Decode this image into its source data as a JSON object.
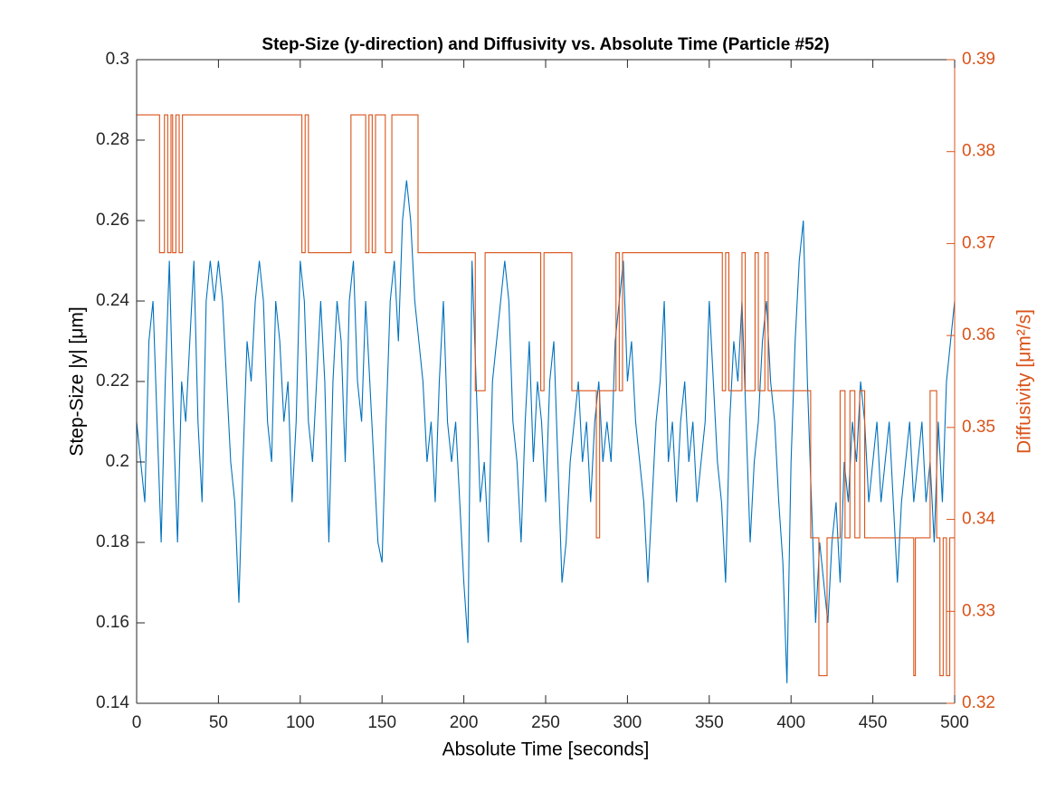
{
  "chart_data": {
    "type": "line",
    "title": "Step-Size (y-direction) and Diffusivity vs. Absolute Time (Particle #52)",
    "xlabel": "Absolute Time [seconds]",
    "ylabel": "Step-Size |y| [μm]",
    "y2label": "Diffusivity [μm²/s]",
    "xlim": [
      0,
      500
    ],
    "xticks": [
      0,
      50,
      100,
      150,
      200,
      250,
      300,
      350,
      400,
      450,
      500
    ],
    "ylim": [
      0.14,
      0.3
    ],
    "yticks": [
      0.14,
      0.16,
      0.18,
      0.2,
      0.22,
      0.24,
      0.26,
      0.28,
      0.3
    ],
    "y2lim": [
      0.32,
      0.39
    ],
    "y2ticks": [
      0.32,
      0.33,
      0.34,
      0.35,
      0.36,
      0.37,
      0.38,
      0.39
    ],
    "y2color": "#D95319",
    "series": [
      {
        "color": "#0072BD",
        "axis": "y",
        "x": [
          0,
          2.5,
          5,
          7.5,
          10,
          12.5,
          15,
          17.5,
          20,
          22.5,
          25,
          27.5,
          30,
          32.5,
          35,
          37.5,
          40,
          42.5,
          45,
          47.5,
          50,
          52.5,
          55,
          57.5,
          60,
          62.5,
          65,
          67.5,
          70,
          72.5,
          75,
          77.5,
          80,
          82.5,
          85,
          87.5,
          90,
          92.5,
          95,
          97.5,
          100,
          102.5,
          105,
          107.5,
          110,
          112.5,
          115,
          117.5,
          120,
          122.5,
          125,
          127.5,
          130,
          132.5,
          135,
          137.5,
          140,
          142.5,
          145,
          147.5,
          150,
          152.5,
          155,
          157.5,
          160,
          162.5,
          165,
          167.5,
          170,
          172.5,
          175,
          177.5,
          180,
          182.5,
          185,
          187.5,
          190,
          192.5,
          195,
          197.5,
          200,
          202.5,
          205,
          207.5,
          210,
          212.5,
          215,
          217.5,
          220,
          222.5,
          225,
          227.5,
          230,
          232.5,
          235,
          237.5,
          240,
          242.5,
          245,
          247.5,
          250,
          252.5,
          255,
          257.5,
          260,
          262.5,
          265,
          267.5,
          270,
          272.5,
          275,
          277.5,
          280,
          282.5,
          285,
          287.5,
          290,
          292.5,
          295,
          297.5,
          300,
          302.5,
          305,
          307.5,
          310,
          312.5,
          315,
          317.5,
          320,
          322.5,
          325,
          327.5,
          330,
          332.5,
          335,
          337.5,
          340,
          342.5,
          345,
          347.5,
          350,
          352.5,
          355,
          357.5,
          360,
          362.5,
          365,
          367.5,
          370,
          372.5,
          375,
          377.5,
          380,
          382.5,
          385,
          387.5,
          390,
          392.5,
          395,
          397.5,
          400,
          402.5,
          405,
          407.5,
          410,
          412.5,
          415,
          417.5,
          420,
          422.5,
          425,
          427.5,
          430,
          432.5,
          435,
          437.5,
          440,
          442.5,
          445,
          447.5,
          450,
          452.5,
          455,
          457.5,
          460,
          462.5,
          465,
          467.5,
          470,
          472.5,
          475,
          477.5,
          480,
          482.5,
          485,
          487.5,
          490,
          492.5,
          495,
          497.5,
          500
        ],
        "values": [
          0.21,
          0.2,
          0.19,
          0.23,
          0.24,
          0.21,
          0.18,
          0.22,
          0.25,
          0.21,
          0.18,
          0.22,
          0.21,
          0.23,
          0.25,
          0.21,
          0.19,
          0.24,
          0.25,
          0.24,
          0.25,
          0.24,
          0.22,
          0.2,
          0.19,
          0.165,
          0.2,
          0.23,
          0.22,
          0.24,
          0.25,
          0.24,
          0.21,
          0.2,
          0.24,
          0.23,
          0.21,
          0.22,
          0.19,
          0.21,
          0.25,
          0.24,
          0.21,
          0.2,
          0.22,
          0.24,
          0.22,
          0.18,
          0.22,
          0.24,
          0.23,
          0.2,
          0.24,
          0.25,
          0.22,
          0.21,
          0.24,
          0.22,
          0.2,
          0.18,
          0.175,
          0.21,
          0.24,
          0.25,
          0.23,
          0.26,
          0.27,
          0.26,
          0.24,
          0.23,
          0.22,
          0.2,
          0.21,
          0.19,
          0.22,
          0.24,
          0.21,
          0.2,
          0.21,
          0.19,
          0.17,
          0.155,
          0.25,
          0.22,
          0.19,
          0.2,
          0.18,
          0.22,
          0.23,
          0.24,
          0.25,
          0.24,
          0.21,
          0.2,
          0.18,
          0.21,
          0.23,
          0.2,
          0.22,
          0.21,
          0.19,
          0.22,
          0.23,
          0.2,
          0.17,
          0.18,
          0.2,
          0.21,
          0.22,
          0.2,
          0.21,
          0.19,
          0.21,
          0.22,
          0.2,
          0.21,
          0.2,
          0.23,
          0.24,
          0.25,
          0.22,
          0.23,
          0.21,
          0.2,
          0.19,
          0.17,
          0.19,
          0.21,
          0.22,
          0.24,
          0.2,
          0.21,
          0.19,
          0.21,
          0.22,
          0.2,
          0.21,
          0.19,
          0.2,
          0.21,
          0.24,
          0.22,
          0.2,
          0.19,
          0.17,
          0.21,
          0.23,
          0.22,
          0.24,
          0.21,
          0.18,
          0.2,
          0.21,
          0.23,
          0.24,
          0.22,
          0.21,
          0.19,
          0.175,
          0.145,
          0.2,
          0.23,
          0.25,
          0.26,
          0.22,
          0.19,
          0.16,
          0.18,
          0.17,
          0.16,
          0.18,
          0.19,
          0.17,
          0.2,
          0.19,
          0.21,
          0.2,
          0.22,
          0.21,
          0.19,
          0.2,
          0.21,
          0.19,
          0.2,
          0.21,
          0.19,
          0.17,
          0.19,
          0.2,
          0.21,
          0.19,
          0.2,
          0.21,
          0.19,
          0.2,
          0.18,
          0.21,
          0.19,
          0.22,
          0.23,
          0.24
        ]
      },
      {
        "color": "#D95319",
        "axis": "y2",
        "drawstyle": "steps-post",
        "x": [
          0,
          14,
          17,
          19,
          21,
          22,
          24,
          26,
          28,
          101,
          103,
          105,
          131,
          140,
          142,
          144,
          146,
          152,
          156,
          172,
          207,
          213,
          247,
          249,
          266,
          281,
          283,
          293,
          295,
          297,
          358,
          360,
          362,
          370,
          372,
          378,
          380,
          384,
          386,
          412,
          417,
          422,
          430,
          433,
          436,
          439,
          442,
          445,
          475,
          476,
          485,
          489,
          491,
          493,
          495,
          497,
          500
        ],
        "values": [
          0.384,
          0.369,
          0.384,
          0.369,
          0.384,
          0.369,
          0.384,
          0.369,
          0.384,
          0.369,
          0.384,
          0.369,
          0.384,
          0.369,
          0.384,
          0.369,
          0.384,
          0.369,
          0.384,
          0.369,
          0.354,
          0.369,
          0.354,
          0.369,
          0.354,
          0.338,
          0.354,
          0.369,
          0.354,
          0.369,
          0.354,
          0.369,
          0.354,
          0.369,
          0.354,
          0.369,
          0.354,
          0.369,
          0.354,
          0.338,
          0.323,
          0.338,
          0.354,
          0.338,
          0.354,
          0.338,
          0.354,
          0.338,
          0.323,
          0.338,
          0.354,
          0.338,
          0.323,
          0.338,
          0.323,
          0.338,
          0.338
        ]
      }
    ]
  }
}
